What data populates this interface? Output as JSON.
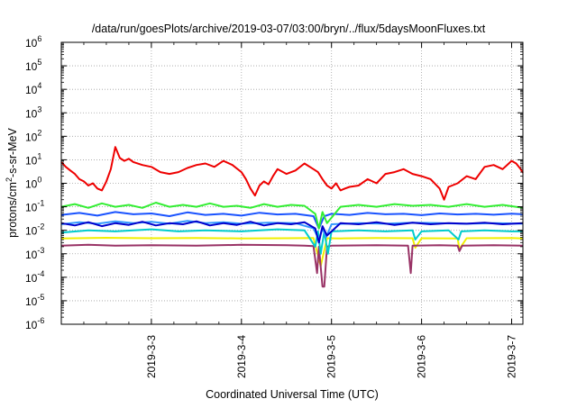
{
  "chart_data": {
    "type": "line",
    "title": "/data/run/goesPlots/archive/2019-03-07/03:00/bryn/../flux/5daysMoonFluxes.txt",
    "xlabel": "Coordinated Universal Time (UTC)",
    "ylabel": {
      "base": "protons/cm",
      "sup": "2",
      "rest": "-s-sr-MeV"
    },
    "x_unit": "days from 2019-3-2 00:00 UTC",
    "xlim": [
      0.0,
      5.125
    ],
    "x_ticks": [
      {
        "x": 1,
        "label": "2019-3-3"
      },
      {
        "x": 2,
        "label": "2019-3-4"
      },
      {
        "x": 3,
        "label": "2019-3-5"
      },
      {
        "x": 4,
        "label": "2019-3-6"
      },
      {
        "x": 5,
        "label": "2019-3-7"
      }
    ],
    "yscale": "log",
    "ylim": [
      1e-06,
      1000000.0
    ],
    "y_ticks": [
      {
        "exp": -6,
        "label": "10",
        "sup": "-6"
      },
      {
        "exp": -5,
        "label": "10",
        "sup": "-5"
      },
      {
        "exp": -4,
        "label": "10",
        "sup": "-4"
      },
      {
        "exp": -3,
        "label": "10",
        "sup": "-3"
      },
      {
        "exp": -2,
        "label": "10",
        "sup": "-2"
      },
      {
        "exp": -1,
        "label": "10",
        "sup": "-1"
      },
      {
        "exp": 0,
        "label": "10",
        "sup": "0"
      },
      {
        "exp": 1,
        "label": "10",
        "sup": "1"
      },
      {
        "exp": 2,
        "label": "10",
        "sup": "2"
      },
      {
        "exp": 3,
        "label": "10",
        "sup": "3"
      },
      {
        "exp": 4,
        "label": "10",
        "sup": "4"
      },
      {
        "exp": 5,
        "label": "10",
        "sup": "5"
      },
      {
        "exp": 6,
        "label": "10",
        "sup": "6"
      }
    ],
    "grid": true,
    "grid_style": "dotted",
    "series": [
      {
        "color": "#f0f000",
        "x": [
          0.0,
          0.5,
          1.0,
          1.5,
          2.0,
          2.5,
          2.8,
          2.88,
          2.95,
          3.1,
          3.5,
          3.9,
          3.93,
          4.0,
          4.4,
          4.42,
          4.5,
          5.0,
          5.125
        ],
        "y": [
          0.0045,
          0.0048,
          0.0046,
          0.0047,
          0.0045,
          0.0046,
          0.0047,
          0.0003,
          0.0046,
          0.0045,
          0.0047,
          0.0046,
          0.0018,
          0.0046,
          0.0045,
          0.0016,
          0.0046,
          0.0047,
          0.0045
        ]
      },
      {
        "color": "#993366",
        "x": [
          0.0,
          0.3,
          0.6,
          1.0,
          1.5,
          2.0,
          2.5,
          2.7,
          2.8,
          2.84,
          2.86,
          2.9,
          2.92,
          2.95,
          3.0,
          3.5,
          3.85,
          3.88,
          3.9,
          4.2,
          4.4,
          4.42,
          4.45,
          4.8,
          5.125
        ],
        "y": [
          0.0022,
          0.0024,
          0.0022,
          0.0023,
          0.0022,
          0.0024,
          0.0023,
          0.0022,
          0.0021,
          0.00015,
          0.002,
          4e-05,
          4e-05,
          0.002,
          0.0022,
          0.0023,
          0.0022,
          0.00015,
          0.0022,
          0.0023,
          0.0022,
          0.0013,
          0.0022,
          0.0023,
          0.0022
        ]
      },
      {
        "color": "#00cccc",
        "x": [
          0.0,
          0.3,
          0.6,
          1.0,
          1.3,
          1.6,
          2.0,
          2.4,
          2.7,
          2.82,
          2.85,
          2.88,
          2.92,
          2.96,
          3.0,
          3.3,
          3.6,
          3.9,
          3.93,
          4.0,
          4.3,
          4.41,
          4.44,
          4.7,
          5.0,
          5.125
        ],
        "y": [
          0.008,
          0.01,
          0.009,
          0.011,
          0.009,
          0.01,
          0.009,
          0.011,
          0.01,
          0.002,
          0.009,
          0.001,
          0.009,
          0.001,
          0.009,
          0.01,
          0.009,
          0.01,
          0.004,
          0.009,
          0.01,
          0.004,
          0.009,
          0.01,
          0.009,
          0.009
        ]
      },
      {
        "color": "#3399ff",
        "x": [
          0.0,
          0.2,
          0.4,
          0.6,
          0.8,
          1.0,
          1.2,
          1.4,
          1.6,
          1.8,
          2.0,
          2.3,
          2.6,
          2.8,
          2.86,
          2.9,
          2.94,
          3.0,
          3.3,
          3.6,
          3.9,
          4.2,
          4.5,
          4.8,
          5.125
        ],
        "y": [
          0.018,
          0.022,
          0.019,
          0.024,
          0.02,
          0.023,
          0.019,
          0.025,
          0.02,
          0.022,
          0.019,
          0.021,
          0.02,
          0.012,
          0.004,
          0.012,
          0.005,
          0.018,
          0.02,
          0.019,
          0.021,
          0.02,
          0.019,
          0.02,
          0.019
        ]
      },
      {
        "color": "#0000cc",
        "x": [
          0.0,
          0.15,
          0.3,
          0.45,
          0.6,
          0.75,
          0.9,
          1.05,
          1.2,
          1.35,
          1.5,
          1.65,
          1.8,
          1.95,
          2.1,
          2.25,
          2.4,
          2.55,
          2.7,
          2.82,
          2.86,
          2.9,
          2.95,
          3.1,
          3.3,
          3.5,
          3.7,
          3.9,
          4.1,
          4.3,
          4.5,
          4.7,
          4.9,
          5.125
        ],
        "y": [
          0.02,
          0.016,
          0.022,
          0.015,
          0.02,
          0.017,
          0.023,
          0.016,
          0.02,
          0.018,
          0.024,
          0.016,
          0.02,
          0.017,
          0.023,
          0.016,
          0.02,
          0.018,
          0.022,
          0.012,
          0.003,
          0.015,
          0.006,
          0.02,
          0.018,
          0.022,
          0.017,
          0.021,
          0.018,
          0.02,
          0.019,
          0.021,
          0.018,
          0.02
        ]
      },
      {
        "color": "#1a53ff",
        "x": [
          0.0,
          0.2,
          0.4,
          0.6,
          0.8,
          1.0,
          1.2,
          1.4,
          1.6,
          1.8,
          2.0,
          2.2,
          2.4,
          2.6,
          2.8,
          2.86,
          2.92,
          3.0,
          3.2,
          3.4,
          3.6,
          3.8,
          4.0,
          4.2,
          4.4,
          4.6,
          4.8,
          5.0,
          5.125
        ],
        "y": [
          0.045,
          0.055,
          0.042,
          0.06,
          0.048,
          0.052,
          0.04,
          0.058,
          0.045,
          0.05,
          0.042,
          0.056,
          0.047,
          0.05,
          0.04,
          0.012,
          0.04,
          0.05,
          0.045,
          0.055,
          0.048,
          0.05,
          0.044,
          0.052,
          0.047,
          0.05,
          0.046,
          0.051,
          0.048
        ]
      },
      {
        "color": "#33ee33",
        "x": [
          0.0,
          0.15,
          0.3,
          0.45,
          0.6,
          0.75,
          0.9,
          1.05,
          1.2,
          1.35,
          1.5,
          1.65,
          1.8,
          1.95,
          2.1,
          2.25,
          2.4,
          2.55,
          2.7,
          2.82,
          2.86,
          2.9,
          2.95,
          3.1,
          3.3,
          3.5,
          3.7,
          3.9,
          4.1,
          4.3,
          4.5,
          4.7,
          4.9,
          5.125
        ],
        "y": [
          0.1,
          0.13,
          0.09,
          0.14,
          0.1,
          0.12,
          0.09,
          0.15,
          0.1,
          0.12,
          0.1,
          0.14,
          0.1,
          0.11,
          0.09,
          0.13,
          0.1,
          0.12,
          0.11,
          0.05,
          0.012,
          0.06,
          0.02,
          0.1,
          0.12,
          0.1,
          0.13,
          0.11,
          0.12,
          0.1,
          0.13,
          0.1,
          0.12,
          0.09
        ]
      },
      {
        "color": "#ee0000",
        "x": [
          0.0,
          0.05,
          0.1,
          0.15,
          0.2,
          0.25,
          0.3,
          0.35,
          0.4,
          0.45,
          0.5,
          0.55,
          0.6,
          0.65,
          0.7,
          0.75,
          0.8,
          0.9,
          1.0,
          1.1,
          1.2,
          1.3,
          1.4,
          1.5,
          1.6,
          1.7,
          1.8,
          1.9,
          2.0,
          2.05,
          2.1,
          2.15,
          2.2,
          2.25,
          2.3,
          2.35,
          2.4,
          2.5,
          2.6,
          2.7,
          2.8,
          2.85,
          2.9,
          2.95,
          3.0,
          3.05,
          3.1,
          3.15,
          3.2,
          3.3,
          3.4,
          3.5,
          3.6,
          3.7,
          3.8,
          3.9,
          4.0,
          4.1,
          4.2,
          4.25,
          4.3,
          4.4,
          4.5,
          4.6,
          4.7,
          4.8,
          4.9,
          5.0,
          5.05,
          5.1,
          5.125
        ],
        "y": [
          8,
          5,
          3.5,
          2.5,
          1.5,
          1.2,
          0.8,
          1.0,
          0.6,
          0.5,
          1.2,
          4,
          35,
          12,
          9,
          11,
          8,
          6,
          5,
          3,
          2.5,
          3,
          4.5,
          6,
          7,
          5,
          9,
          6,
          3,
          1.5,
          0.6,
          0.3,
          0.8,
          1.2,
          0.9,
          2,
          4,
          2.5,
          3.5,
          7,
          4,
          3,
          1.5,
          0.8,
          0.6,
          1.0,
          0.5,
          0.6,
          0.7,
          0.8,
          1.5,
          1.0,
          2.5,
          3,
          4,
          2.5,
          2,
          1.5,
          0.6,
          0.2,
          0.7,
          1.0,
          2,
          1.5,
          5,
          6,
          4,
          9,
          7,
          4,
          2.8
        ]
      }
    ]
  }
}
